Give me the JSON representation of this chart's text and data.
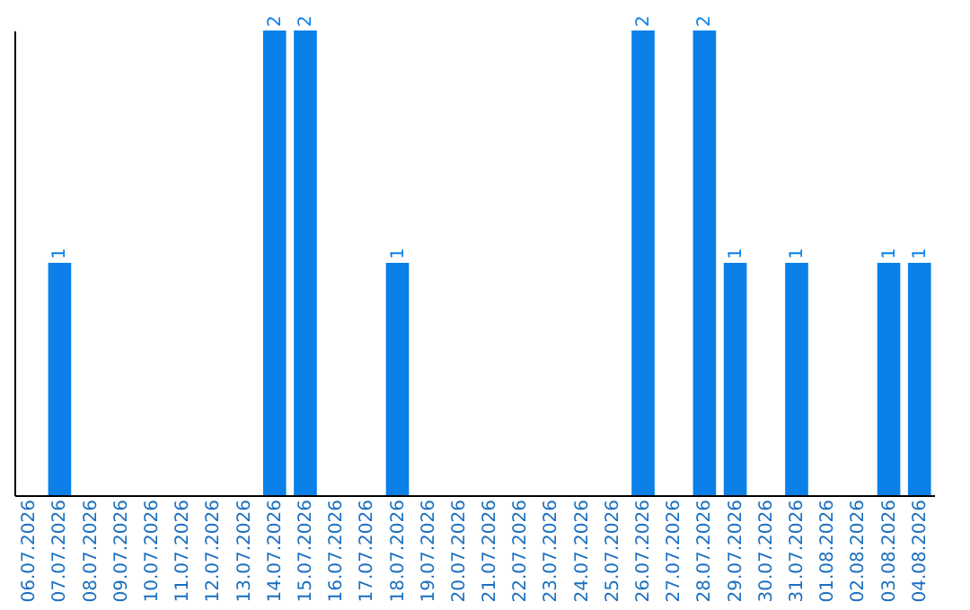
{
  "chart_data": {
    "type": "bar",
    "categories": [
      "06.07.2026",
      "07.07.2026",
      "08.07.2026",
      "09.07.2026",
      "10.07.2026",
      "11.07.2026",
      "12.07.2026",
      "13.07.2026",
      "14.07.2026",
      "15.07.2026",
      "16.07.2026",
      "17.07.2026",
      "18.07.2026",
      "19.07.2026",
      "20.07.2026",
      "21.07.2026",
      "22.07.2026",
      "23.07.2026",
      "24.07.2026",
      "25.07.2026",
      "26.07.2026",
      "27.07.2026",
      "28.07.2026",
      "29.07.2026",
      "30.07.2026",
      "31.07.2026",
      "01.08.2026",
      "02.08.2026",
      "03.08.2026",
      "04.08.2026"
    ],
    "values": [
      0,
      1,
      0,
      0,
      0,
      0,
      0,
      0,
      2,
      2,
      0,
      0,
      1,
      0,
      0,
      0,
      0,
      0,
      0,
      0,
      2,
      0,
      2,
      1,
      0,
      1,
      0,
      0,
      1,
      1
    ],
    "value_labels": [
      null,
      "1",
      null,
      null,
      null,
      null,
      null,
      null,
      "2",
      "2",
      null,
      null,
      "1",
      null,
      null,
      null,
      null,
      null,
      null,
      null,
      "2",
      null,
      "2",
      "1",
      null,
      "1",
      null,
      null,
      "1",
      "1"
    ],
    "color": "#0a80e8",
    "ylim": [
      0,
      2
    ],
    "tick_labels": "x",
    "grid": false
  }
}
